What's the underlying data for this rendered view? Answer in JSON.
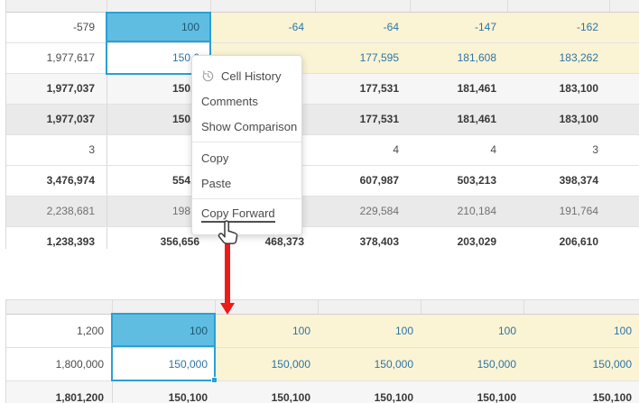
{
  "colors": {
    "selection_border": "#2aa0d4",
    "selected_cell_fill": "#5fbde2",
    "editable_cell_bg": "#faf4d5",
    "editable_value_text": "#2e74a4",
    "arrow_red": "#ee1b1b",
    "shaded_row_bg": "#eaeaea"
  },
  "menu": {
    "items": [
      {
        "label": "Cell History",
        "icon": "cell-history-icon"
      },
      {
        "label": "Comments"
      },
      {
        "label": "Show Comparison"
      },
      {
        "divider": true
      },
      {
        "label": "Copy"
      },
      {
        "label": "Paste"
      },
      {
        "divider": true
      },
      {
        "label": "Copy Forward",
        "underlined": true
      }
    ]
  },
  "tables": {
    "top": {
      "rows": [
        {
          "shade": "w",
          "cells": [
            {
              "v": "-579",
              "t": "d"
            },
            {
              "v": "100",
              "t": "sb"
            },
            {
              "v": "-64",
              "t": "y"
            },
            {
              "v": "-64",
              "t": "y"
            },
            {
              "v": "-147",
              "t": "y"
            },
            {
              "v": "-162",
              "t": "y"
            },
            {
              "v": "",
              "t": "y"
            }
          ]
        },
        {
          "shade": "w",
          "cells": [
            {
              "v": "1,977,617",
              "t": "d"
            },
            {
              "v": "150,0",
              "t": "sw"
            },
            {
              "v": "",
              "t": "y"
            },
            {
              "v": "177,595",
              "t": "y"
            },
            {
              "v": "181,608",
              "t": "y"
            },
            {
              "v": "183,262",
              "t": "y"
            },
            {
              "v": "",
              "t": "y"
            }
          ]
        },
        {
          "shade": "lg",
          "cells": [
            {
              "v": "1,977,037",
              "t": "b"
            },
            {
              "v": "150,1",
              "t": "b"
            },
            {
              "v": "",
              "t": "n"
            },
            {
              "v": "177,531",
              "t": "b"
            },
            {
              "v": "181,461",
              "t": "b"
            },
            {
              "v": "183,100",
              "t": "b"
            },
            {
              "v": "",
              "t": "n"
            }
          ]
        },
        {
          "shade": "g",
          "cells": [
            {
              "v": "1,977,037",
              "t": "b"
            },
            {
              "v": "150,1",
              "t": "b"
            },
            {
              "v": "",
              "t": "n"
            },
            {
              "v": "177,531",
              "t": "b"
            },
            {
              "v": "181,461",
              "t": "b"
            },
            {
              "v": "183,100",
              "t": "b"
            },
            {
              "v": "",
              "t": "n"
            }
          ]
        },
        {
          "shade": "w",
          "cells": [
            {
              "v": "3",
              "t": "d"
            },
            {
              "v": "",
              "t": "n"
            },
            {
              "v": "",
              "t": "n"
            },
            {
              "v": "4",
              "t": "d"
            },
            {
              "v": "4",
              "t": "d"
            },
            {
              "v": "3",
              "t": "d"
            },
            {
              "v": "",
              "t": "n"
            }
          ]
        },
        {
          "shade": "w",
          "cells": [
            {
              "v": "3,476,974",
              "t": "b"
            },
            {
              "v": "554,9",
              "t": "b"
            },
            {
              "v": "",
              "t": "n"
            },
            {
              "v": "607,987",
              "t": "b"
            },
            {
              "v": "503,213",
              "t": "b"
            },
            {
              "v": "398,374",
              "t": "b"
            },
            {
              "v": "",
              "t": "n"
            }
          ]
        },
        {
          "shade": "g",
          "cells": [
            {
              "v": "2,238,681",
              "t": "g"
            },
            {
              "v": "198,2",
              "t": "g"
            },
            {
              "v": "",
              "t": "n"
            },
            {
              "v": "229,584",
              "t": "g"
            },
            {
              "v": "210,184",
              "t": "g"
            },
            {
              "v": "191,764",
              "t": "g"
            },
            {
              "v": "",
              "t": "n"
            }
          ]
        },
        {
          "shade": "w",
          "cells": [
            {
              "v": "1,238,393",
              "t": "b"
            },
            {
              "v": "356,656",
              "t": "b"
            },
            {
              "v": "468,373",
              "t": "b"
            },
            {
              "v": "378,403",
              "t": "b"
            },
            {
              "v": "203,029",
              "t": "b"
            },
            {
              "v": "206,610",
              "t": "b"
            },
            {
              "v": "",
              "t": "n"
            }
          ]
        }
      ]
    },
    "bottom": {
      "rows": [
        {
          "shade": "w",
          "cells": [
            {
              "v": "1,200",
              "t": "d"
            },
            {
              "v": "100",
              "t": "sb"
            },
            {
              "v": "100",
              "t": "y"
            },
            {
              "v": "100",
              "t": "y"
            },
            {
              "v": "100",
              "t": "y"
            },
            {
              "v": "100",
              "t": "y"
            }
          ]
        },
        {
          "shade": "w",
          "cells": [
            {
              "v": "1,800,000",
              "t": "d"
            },
            {
              "v": "150,000",
              "t": "sw"
            },
            {
              "v": "150,000",
              "t": "y"
            },
            {
              "v": "150,000",
              "t": "y"
            },
            {
              "v": "150,000",
              "t": "y"
            },
            {
              "v": "150,000",
              "t": "y"
            }
          ]
        },
        {
          "shade": "lg",
          "cells": [
            {
              "v": "1,801,200",
              "t": "b"
            },
            {
              "v": "150,100",
              "t": "b"
            },
            {
              "v": "150,100",
              "t": "b"
            },
            {
              "v": "150,100",
              "t": "b"
            },
            {
              "v": "150,100",
              "t": "b"
            },
            {
              "v": "150,100",
              "t": "b"
            }
          ]
        }
      ]
    }
  }
}
